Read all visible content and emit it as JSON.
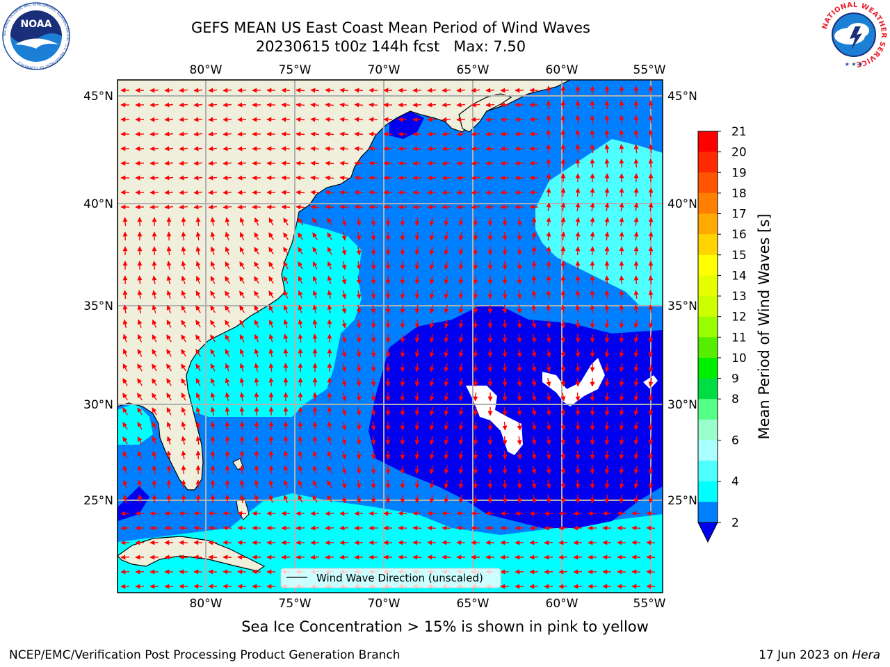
{
  "title": {
    "line1": "GEFS MEAN US East Coast Mean Period of Wind Waves",
    "line2": "20230615 t00z 144h fcst   Max: 7.50"
  },
  "map": {
    "lon_labels": [
      "80°W",
      "75°W",
      "70°W",
      "65°W",
      "60°W",
      "55°W"
    ],
    "lat_labels": [
      "45°N",
      "40°N",
      "35°N",
      "30°N",
      "25°N"
    ],
    "legend_label": "Wind Wave Direction (unscaled)",
    "colors": {
      "land": "#efefdc",
      "band_2_4": "#0080ff",
      "band_4_6": "#00ffff",
      "band_6_8": "#4dffff",
      "band_below_2": "#0000ee",
      "arrows": "#ff0000",
      "grid": "#b0b0b0"
    }
  },
  "colorbar": {
    "label": "Mean Period of Wind Waves [s]",
    "ticks": [
      "21",
      "20",
      "19",
      "18",
      "17",
      "16",
      "15",
      "14",
      "13",
      "12",
      "11",
      "10",
      "9",
      "8",
      "6",
      "4",
      "2"
    ],
    "colors": [
      "#ff0000",
      "#ff2a00",
      "#ff5500",
      "#ff8000",
      "#ffaa00",
      "#ffd400",
      "#ffff00",
      "#e6ff00",
      "#ccff00",
      "#99ff00",
      "#55ee00",
      "#00ee00",
      "#00dd44",
      "#55ff88",
      "#99ffcc",
      "#aaffff",
      "#4dffff",
      "#00ffff",
      "#0080ff"
    ],
    "extend_min_color": "#0000ee"
  },
  "icons": {
    "left_logo": "noaa-logo",
    "right_logo": "national-weather-service-logo"
  },
  "logo_text": {
    "noaa": "NOAA",
    "noaa_ring": "NATIONAL OCEANIC AND ATMOSPHERIC ADMINISTRATION · U.S. DEPARTMENT OF COMMERCE",
    "nws_ring": "NATIONAL WEATHER SERVICE"
  },
  "footer": {
    "ice_note": "Sea Ice Concentration > 15% is shown in pink to yellow",
    "credit": "NCEP/EMC/Verification Post Processing Product Generation Branch",
    "date": "17 Jun 2023 on ",
    "machine": "Hera"
  }
}
